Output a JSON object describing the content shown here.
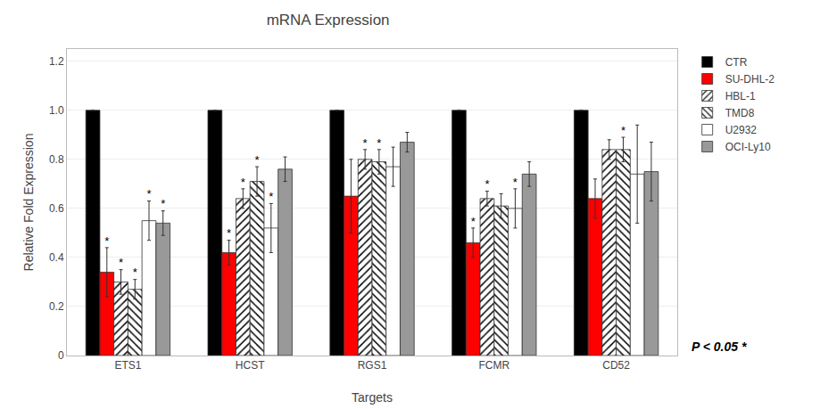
{
  "chart_data": {
    "type": "bar",
    "title": "mRNA Expression",
    "xlabel": "Targets",
    "ylabel": "Relative Fold Expression",
    "categories": [
      "ETS1",
      "HCST",
      "RGS1",
      "FCMR",
      "CD52"
    ],
    "series": [
      {
        "name": "CTR",
        "color": "#000000",
        "marker": "solid",
        "values": [
          1.0,
          1.0,
          1.0,
          1.0,
          1.0
        ],
        "errors": [
          0.0,
          0.0,
          0.0,
          0.0,
          0.0
        ],
        "significance": [
          null,
          null,
          null,
          null,
          null
        ]
      },
      {
        "name": "SU-DHL-2",
        "color": "#ff0000",
        "marker": "solid",
        "values": [
          0.34,
          0.42,
          0.65,
          0.46,
          0.64
        ],
        "errors": [
          0.1,
          0.05,
          0.15,
          0.06,
          0.08
        ],
        "significance": [
          "*",
          "*",
          null,
          "*",
          null
        ]
      },
      {
        "name": "HBL-1",
        "color": "#ffffff",
        "marker": "forward_hatch",
        "values": [
          0.3,
          0.64,
          0.8,
          0.64,
          0.84
        ],
        "errors": [
          0.05,
          0.04,
          0.04,
          0.03,
          0.04
        ],
        "significance": [
          "*",
          "*",
          "*",
          "*",
          null
        ]
      },
      {
        "name": "TMD8",
        "color": "#ffffff",
        "marker": "back_hatch",
        "values": [
          0.27,
          0.71,
          0.79,
          0.61,
          0.84
        ],
        "errors": [
          0.04,
          0.06,
          0.05,
          0.05,
          0.05
        ],
        "significance": [
          "*",
          "*",
          "*",
          null,
          "*"
        ]
      },
      {
        "name": "U2932",
        "color": "#ffffff",
        "marker": "solid",
        "values": [
          0.55,
          0.52,
          0.77,
          0.6,
          0.74
        ],
        "errors": [
          0.08,
          0.1,
          0.08,
          0.08,
          0.2
        ],
        "significance": [
          "*",
          "*",
          null,
          "*",
          null
        ]
      },
      {
        "name": "OCI-Ly10",
        "color": "#999999",
        "marker": "solid",
        "values": [
          0.54,
          0.76,
          0.87,
          0.74,
          0.75
        ],
        "errors": [
          0.05,
          0.05,
          0.04,
          0.05,
          0.12
        ],
        "significance": [
          "*",
          null,
          null,
          null,
          null
        ]
      }
    ],
    "ylim": [
      0,
      1.25
    ],
    "yticks": [
      0,
      0.2,
      0.4,
      0.6,
      0.8,
      {
        "value": 1.0,
        "label": "1.0"
      },
      1.2
    ],
    "grid": true,
    "legend": "right",
    "annotations": [
      {
        "text": "P < 0.05 *"
      }
    ]
  }
}
